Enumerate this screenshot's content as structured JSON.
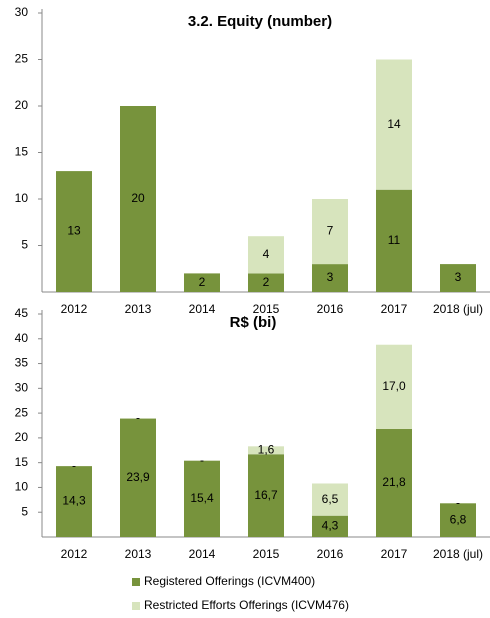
{
  "chart_data": [
    {
      "type": "stacked_bar",
      "title": "3.2. Equity (number)",
      "categories": [
        "2012",
        "2013",
        "2014",
        "2015",
        "2016",
        "2017",
        "2018 (jul)"
      ],
      "series": [
        {
          "color": "#77933c",
          "values": [
            13,
            20,
            2,
            2,
            3,
            11,
            3
          ]
        },
        {
          "color": "#d7e4bd",
          "values": [
            null,
            null,
            null,
            4,
            7,
            14,
            null
          ]
        }
      ],
      "ylim": [
        0,
        30
      ],
      "yticks": [
        5,
        10,
        15,
        20,
        25,
        30
      ]
    },
    {
      "type": "stacked_bar",
      "title": "R$ (bi)",
      "categories": [
        "2012",
        "2013",
        "2014",
        "2015",
        "2016",
        "2017",
        "2018 (jul)"
      ],
      "series": [
        {
          "name": "Registered Offerings (ICVM400)",
          "color": "#77933c",
          "values": [
            14.3,
            23.9,
            15.4,
            16.7,
            4.3,
            21.8,
            6.8
          ],
          "value_labels": [
            "14,3",
            "23,9",
            "15,4",
            "16,7",
            "4,3",
            "21,8",
            "6,8"
          ]
        },
        {
          "name": "Restricted Efforts Offerings (ICVM476)",
          "color": "#d7e4bd",
          "values": [
            0,
            0,
            0,
            1.6,
            6.5,
            17.0,
            0
          ],
          "value_labels": [
            "-",
            "-",
            "-",
            "1,6",
            "6,5",
            "17,0",
            "-"
          ]
        }
      ],
      "ylim": [
        0,
        45
      ],
      "yticks": [
        5,
        10,
        15,
        20,
        25,
        30,
        35,
        40,
        45
      ],
      "legend": "bottom"
    }
  ]
}
